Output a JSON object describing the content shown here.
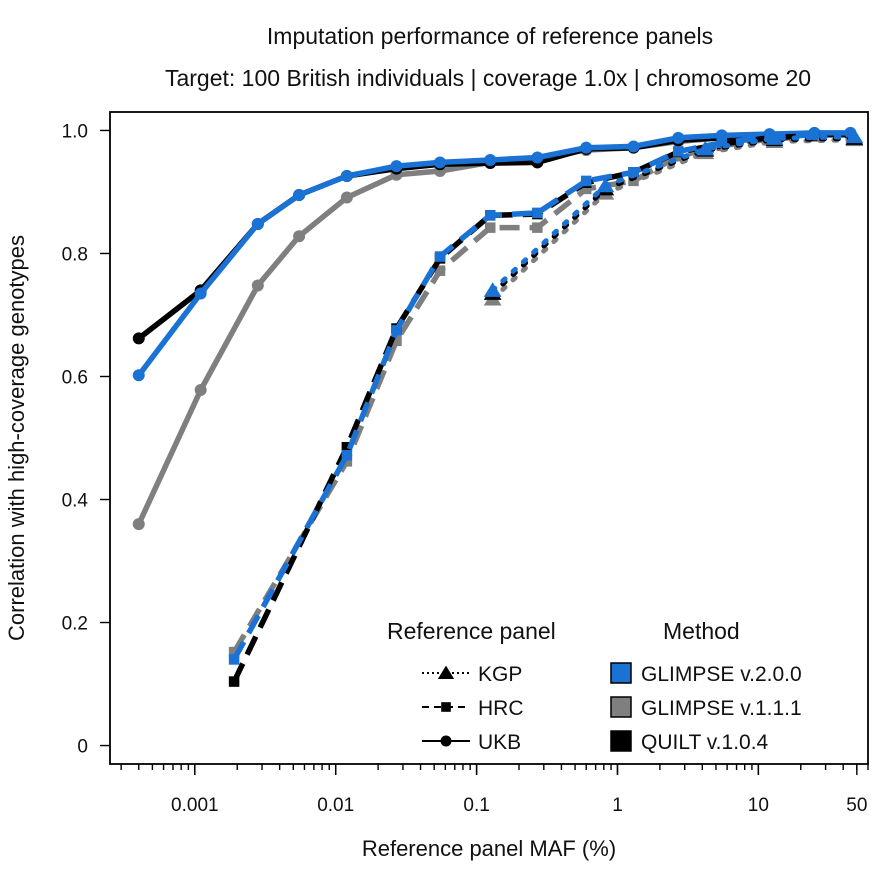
{
  "chart_data": {
    "type": "line",
    "title": "Imputation performance of reference panels",
    "subtitle": "Target: 100 British individuals | coverage 1.0x | chromosome 20",
    "xlabel": "Reference panel MAF (%)",
    "ylabel": "Correlation with high-coverage genotypes",
    "xscale": "log",
    "xlim": [
      0.00025,
      60
    ],
    "ylim": [
      -0.03,
      1.03
    ],
    "xticks": [
      {
        "value": 0.001,
        "label": "0.001"
      },
      {
        "value": 0.01,
        "label": "0.01"
      },
      {
        "value": 0.1,
        "label": "0.1"
      },
      {
        "value": 1,
        "label": "1"
      },
      {
        "value": 10,
        "label": "10"
      },
      {
        "value": 50,
        "label": "50"
      }
    ],
    "yticks": [
      {
        "value": 0,
        "label": "0"
      },
      {
        "value": 0.2,
        "label": "0.2"
      },
      {
        "value": 0.4,
        "label": "0.4"
      },
      {
        "value": 0.6,
        "label": "0.6"
      },
      {
        "value": 0.8,
        "label": "0.8"
      },
      {
        "value": 1.0,
        "label": "1.0"
      }
    ],
    "grid": false,
    "legend_placement": "bottom-right",
    "legend": {
      "panel_title": "Reference panel",
      "method_title": "Method",
      "panels": [
        {
          "label": "KGP",
          "marker": "triangle",
          "dash": "dotted"
        },
        {
          "label": "HRC",
          "marker": "square",
          "dash": "dashed"
        },
        {
          "label": "UKB",
          "marker": "circle",
          "dash": "solid"
        }
      ],
      "methods": [
        {
          "label": "GLIMPSE v.2.0.0",
          "color": "#1a72d4"
        },
        {
          "label": "GLIMPSE v.1.1.1",
          "color": "#7f7f7f"
        },
        {
          "label": "QUILT v.1.0.4",
          "color": "#000000"
        }
      ]
    },
    "series": [
      {
        "panel": "UKB",
        "method": "GLIMPSE v.1.1.1",
        "color": "#7f7f7f",
        "dash": "solid",
        "marker": "circle",
        "x": [
          0.0004,
          0.0011,
          0.0028,
          0.0055,
          0.012,
          0.027,
          0.055,
          0.125,
          0.27,
          0.6,
          1.3,
          2.7,
          5.5,
          12,
          25,
          45
        ],
        "y": [
          0.36,
          0.578,
          0.748,
          0.828,
          0.891,
          0.928,
          0.934,
          0.948,
          0.954,
          0.968,
          0.972,
          0.982,
          0.988,
          0.991,
          0.994,
          0.994
        ]
      },
      {
        "panel": "UKB",
        "method": "QUILT v.1.0.4",
        "color": "#000000",
        "dash": "solid",
        "marker": "circle",
        "x": [
          0.0004,
          0.0011,
          0.0028,
          0.0055,
          0.012,
          0.027,
          0.055,
          0.125,
          0.27,
          0.6,
          1.3,
          2.7,
          5.5,
          12,
          25,
          45
        ],
        "y": [
          0.662,
          0.74,
          0.848,
          0.895,
          0.926,
          0.938,
          0.945,
          0.947,
          0.948,
          0.97,
          0.972,
          0.984,
          0.988,
          0.99,
          0.993,
          0.993
        ]
      },
      {
        "panel": "UKB",
        "method": "GLIMPSE v.2.0.0",
        "color": "#1a72d4",
        "dash": "solid",
        "marker": "circle",
        "x": [
          0.0004,
          0.0011,
          0.0028,
          0.0055,
          0.012,
          0.027,
          0.055,
          0.125,
          0.27,
          0.6,
          1.3,
          2.7,
          5.5,
          12,
          25,
          45
        ],
        "y": [
          0.602,
          0.735,
          0.848,
          0.895,
          0.926,
          0.942,
          0.948,
          0.952,
          0.956,
          0.972,
          0.974,
          0.988,
          0.992,
          0.994,
          0.996,
          0.996
        ]
      },
      {
        "panel": "HRC",
        "method": "GLIMPSE v.1.1.1",
        "color": "#7f7f7f",
        "dash": "dashed",
        "marker": "square",
        "x": [
          0.0019,
          0.012,
          0.027,
          0.055,
          0.125,
          0.27,
          0.6,
          1.3,
          2.7,
          5.5,
          12,
          25
        ],
        "y": [
          0.152,
          0.462,
          0.658,
          0.772,
          0.842,
          0.842,
          0.905,
          0.918,
          0.958,
          0.975,
          0.986,
          0.99
        ]
      },
      {
        "panel": "HRC",
        "method": "QUILT v.1.0.4",
        "color": "#000000",
        "dash": "dashed",
        "marker": "square",
        "x": [
          0.0019,
          0.012,
          0.027,
          0.055,
          0.125,
          0.27,
          0.6,
          1.3,
          2.7,
          5.5,
          12,
          25
        ],
        "y": [
          0.104,
          0.485,
          0.678,
          0.792,
          0.862,
          0.864,
          0.915,
          0.932,
          0.965,
          0.978,
          0.988,
          0.992
        ]
      },
      {
        "panel": "HRC",
        "method": "GLIMPSE v.2.0.0",
        "color": "#1a72d4",
        "dash": "dashed",
        "marker": "square",
        "x": [
          0.0019,
          0.012,
          0.027,
          0.055,
          0.125,
          0.27,
          0.6,
          1.3,
          2.7,
          5.5,
          12,
          25
        ],
        "y": [
          0.14,
          0.472,
          0.675,
          0.795,
          0.862,
          0.866,
          0.918,
          0.932,
          0.966,
          0.98,
          0.989,
          0.993
        ]
      },
      {
        "panel": "KGP",
        "method": "GLIMPSE v.1.1.1",
        "color": "#7f7f7f",
        "dash": "dotted",
        "marker": "triangle",
        "x": [
          0.13,
          0.82,
          4.2,
          13,
          48
        ],
        "y": [
          0.726,
          0.898,
          0.964,
          0.982,
          0.985
        ]
      },
      {
        "panel": "KGP",
        "method": "QUILT v.1.0.4",
        "color": "#000000",
        "dash": "dotted",
        "marker": "triangle",
        "x": [
          0.13,
          0.82,
          4.2,
          13,
          48
        ],
        "y": [
          0.735,
          0.905,
          0.968,
          0.985,
          0.987
        ]
      },
      {
        "panel": "KGP",
        "method": "GLIMPSE v.2.0.0",
        "color": "#1a72d4",
        "dash": "dotted",
        "marker": "triangle",
        "x": [
          0.13,
          0.82,
          4.2,
          13,
          48
        ],
        "y": [
          0.74,
          0.91,
          0.97,
          0.987,
          0.99
        ]
      }
    ]
  }
}
